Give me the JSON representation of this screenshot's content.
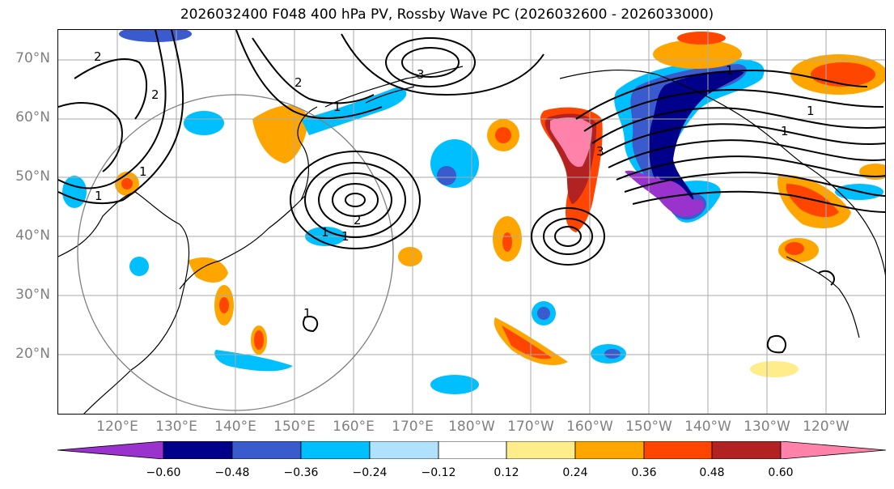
{
  "title": "2026032400 F048 400 hPa PV, Rossby Wave PC (2026032600 - 2026033000)",
  "latitude_labels": [
    "70°N",
    "60°N",
    "50°N",
    "40°N",
    "30°N",
    "20°N"
  ],
  "longitude_labels": [
    "120°E",
    "130°E",
    "140°E",
    "150°E",
    "160°E",
    "170°E",
    "180°W",
    "170°W",
    "160°W",
    "150°W",
    "140°W",
    "130°W",
    "120°W"
  ],
  "colorbar": {
    "ticks": [
      "−0.60",
      "−0.48",
      "−0.36",
      "−0.24",
      "−0.12",
      "0.12",
      "0.24",
      "0.36",
      "0.48",
      "0.60"
    ],
    "colors": [
      "#9a32cd",
      "#00008b",
      "#3a5bcd",
      "#00bfff",
      "#b0e2ff",
      "#ffffff",
      "#ffec8b",
      "#ffa500",
      "#ff4500",
      "#b22222",
      "#ff82ab"
    ]
  },
  "contour_labels": [
    "2",
    "2",
    "1",
    "1",
    "2",
    "3",
    "1",
    "2",
    "1",
    "1",
    "3",
    "1",
    "1",
    "1",
    "1"
  ]
}
